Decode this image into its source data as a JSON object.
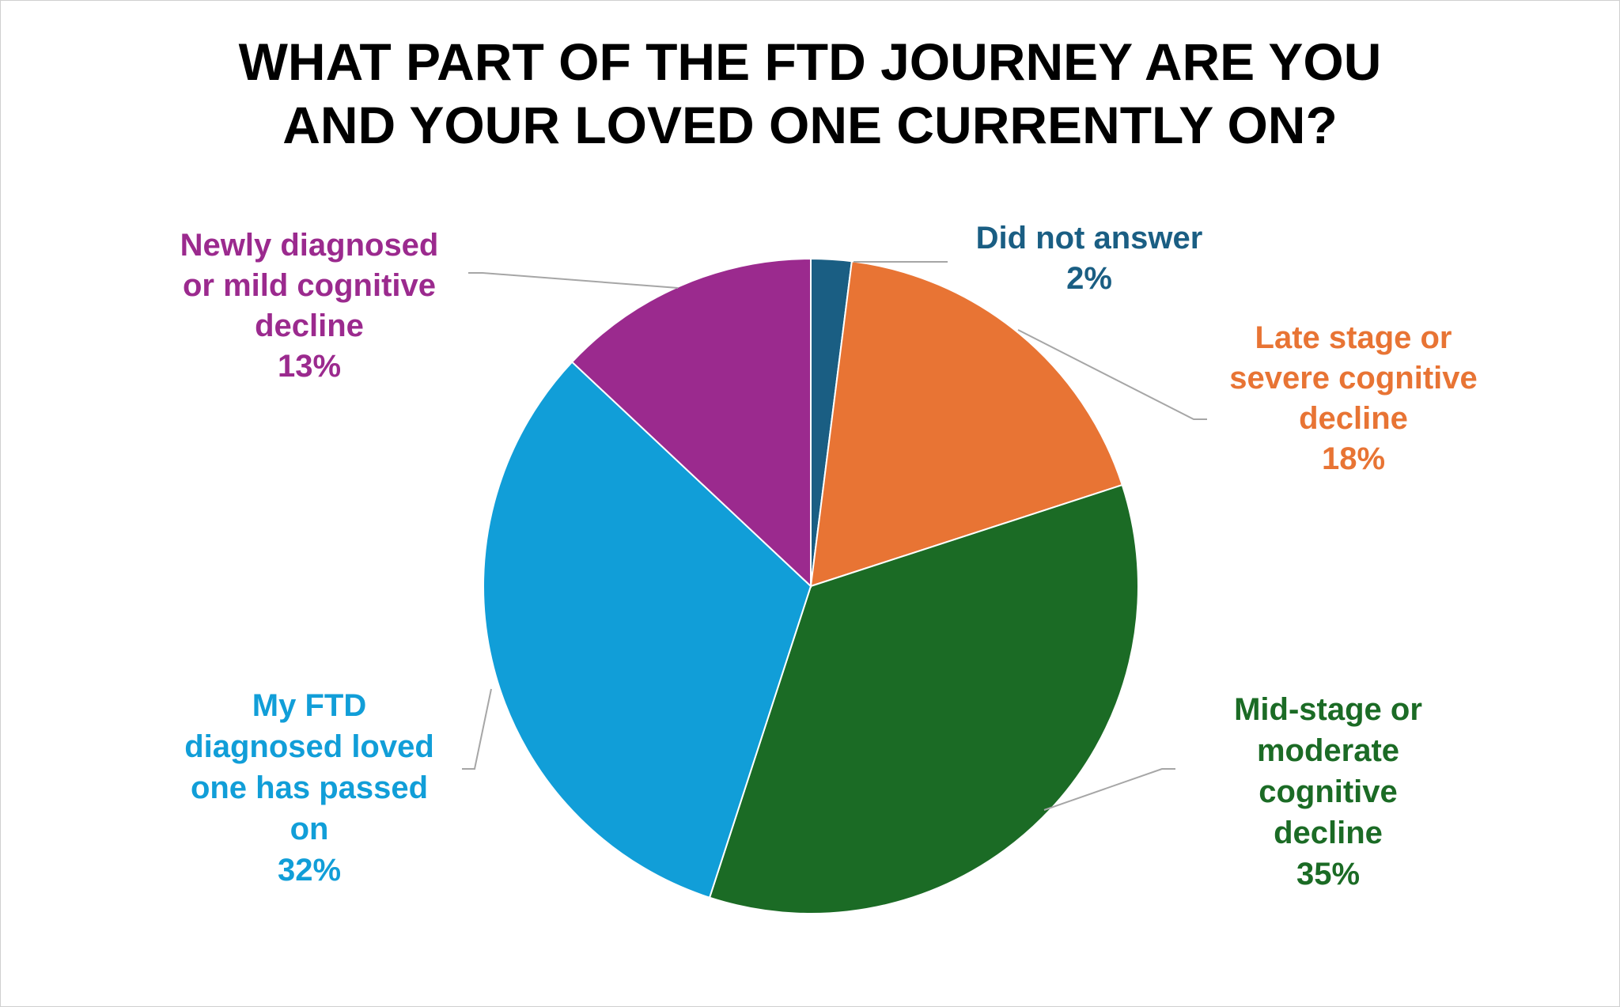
{
  "chart_data": {
    "type": "pie",
    "title": "WHAT PART OF THE FTD JOURNEY ARE YOU AND YOUR LOVED ONE CURRENTLY ON?",
    "title_lines": [
      "WHAT PART OF THE FTD JOURNEY ARE YOU",
      "AND YOUR LOVED ONE CURRENTLY ON?"
    ],
    "slices": [
      {
        "label": "Did not answer",
        "label_lines": [
          "Did not answer"
        ],
        "value": 2,
        "value_label": "2%",
        "color": "#1a5e83"
      },
      {
        "label": "Late stage or severe cognitive decline",
        "label_lines": [
          "Late stage or",
          "severe cognitive",
          "decline"
        ],
        "value": 18,
        "value_label": "18%",
        "color": "#e87434"
      },
      {
        "label": "Mid-stage or moderate cognitive decline",
        "label_lines": [
          "Mid-stage or",
          "moderate",
          "cognitive",
          "decline"
        ],
        "value": 35,
        "value_label": "35%",
        "color": "#1b6b25"
      },
      {
        "label": "My FTD diagnosed loved one has passed on",
        "label_lines": [
          "My FTD",
          "diagnosed loved",
          "one has passed",
          "on"
        ],
        "value": 32,
        "value_label": "32%",
        "color": "#119ed8"
      },
      {
        "label": "Newly diagnosed or mild cognitive decline",
        "label_lines": [
          "Newly diagnosed",
          "or mild cognitive",
          "decline"
        ],
        "value": 13,
        "value_label": "13%",
        "color": "#9b2a8e"
      }
    ],
    "start_angle_deg": 0,
    "direction": "clockwise",
    "legend": "none",
    "data_labels": "outside with leader lines"
  }
}
